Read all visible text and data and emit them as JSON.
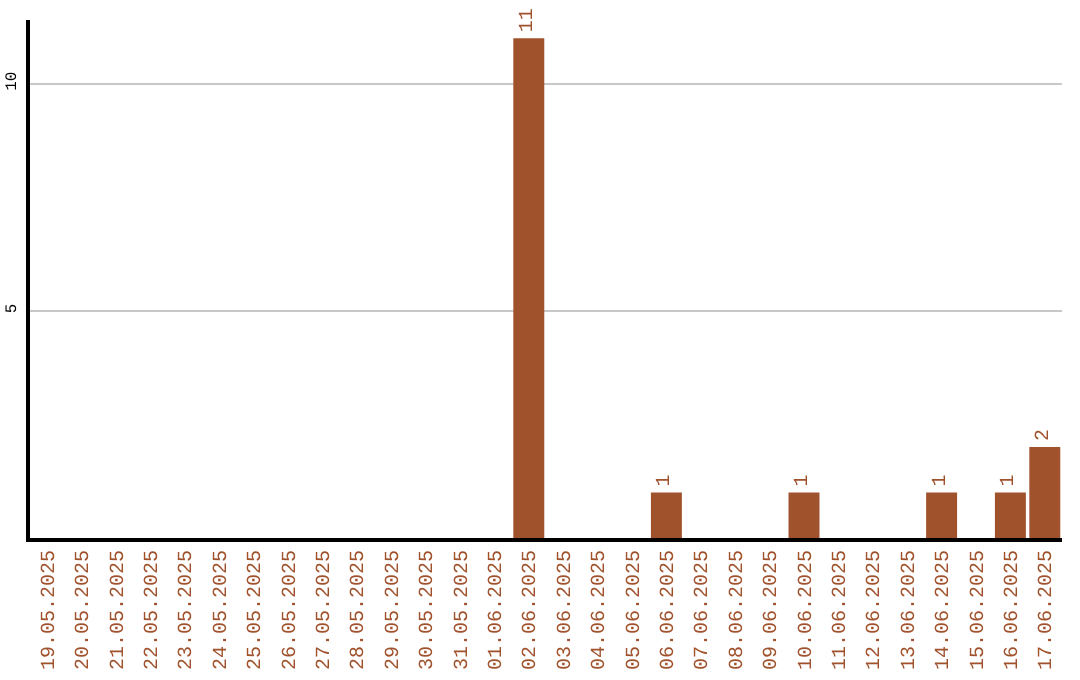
{
  "chart_data": {
    "type": "bar",
    "categories": [
      "19.05.2025",
      "20.05.2025",
      "21.05.2025",
      "22.05.2025",
      "23.05.2025",
      "24.05.2025",
      "25.05.2025",
      "26.05.2025",
      "27.05.2025",
      "28.05.2025",
      "29.05.2025",
      "30.05.2025",
      "31.05.2025",
      "01.06.2025",
      "02.06.2025",
      "03.06.2025",
      "04.06.2025",
      "05.06.2025",
      "06.06.2025",
      "07.06.2025",
      "08.06.2025",
      "09.06.2025",
      "10.06.2025",
      "11.06.2025",
      "12.06.2025",
      "13.06.2025",
      "14.06.2025",
      "15.06.2025",
      "16.06.2025",
      "17.06.2025"
    ],
    "values": [
      0,
      0,
      0,
      0,
      0,
      0,
      0,
      0,
      0,
      0,
      0,
      0,
      0,
      0,
      11,
      0,
      0,
      0,
      1,
      0,
      0,
      0,
      1,
      0,
      0,
      0,
      1,
      0,
      1,
      2
    ],
    "value_labels": [
      null,
      null,
      null,
      null,
      null,
      null,
      null,
      null,
      null,
      null,
      null,
      null,
      null,
      null,
      "11",
      null,
      null,
      null,
      "1",
      null,
      null,
      null,
      "1",
      null,
      null,
      null,
      "1",
      null,
      "1",
      "2"
    ],
    "color": "#a0522d",
    "ylim": [
      0,
      11.4
    ],
    "yticks": [
      5,
      10
    ],
    "grid": "y",
    "legend": false
  }
}
